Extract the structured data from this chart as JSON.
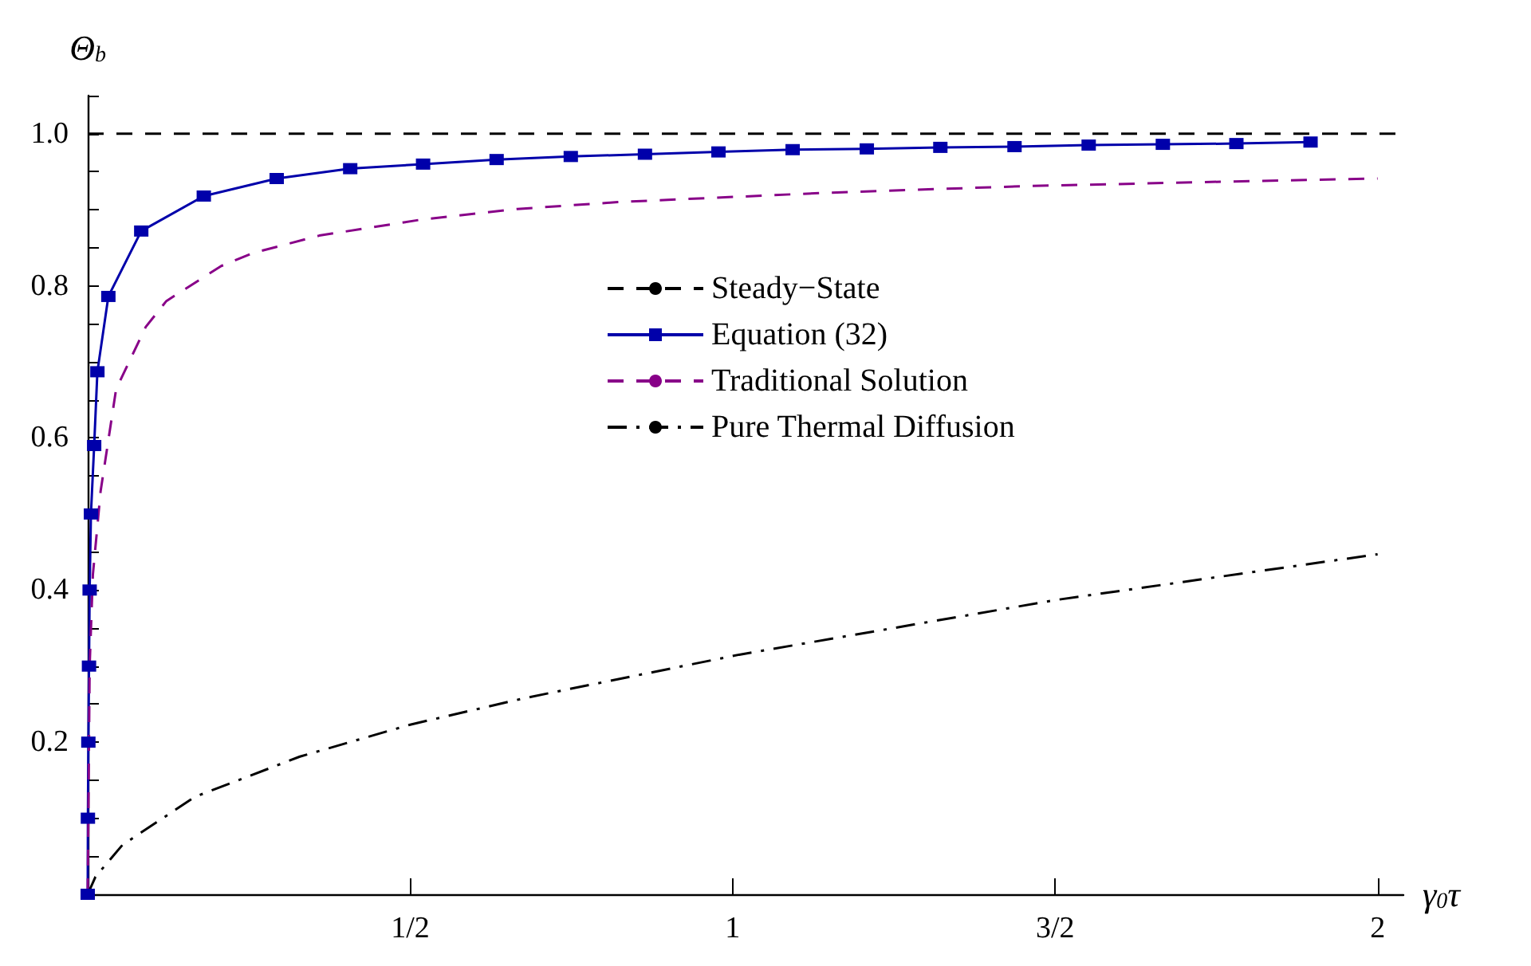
{
  "chart_data": {
    "type": "line",
    "xlabel": "γ$_{0}$τ",
    "ylabel": "Θ$_{b}$",
    "xlim": [
      0,
      2.04
    ],
    "ylim": [
      0,
      1.05
    ],
    "xticks": [
      {
        "value": 0.5,
        "label": "1/2"
      },
      1,
      {
        "value": 1.5,
        "label": "3/2"
      },
      2
    ],
    "yticks": [
      {
        "value": 0,
        "label": null
      },
      {
        "value": 0.05,
        "label": null
      },
      {
        "value": 0.1,
        "label": null
      },
      {
        "value": 0.15,
        "label": null
      },
      0.2,
      {
        "value": 0.25,
        "label": null
      },
      {
        "value": 0.3,
        "label": null
      },
      {
        "value": 0.35,
        "label": null
      },
      0.4,
      {
        "value": 0.45,
        "label": null
      },
      {
        "value": 0.5,
        "label": null
      },
      {
        "value": 0.55,
        "label": null
      },
      0.6,
      {
        "value": 0.65,
        "label": null
      },
      {
        "value": 0.7,
        "label": null
      },
      {
        "value": 0.75,
        "label": null
      },
      0.8,
      {
        "value": 0.85,
        "label": null
      },
      {
        "value": 0.9,
        "label": null
      },
      {
        "value": 0.95,
        "label": null
      },
      {
        "value": 1.0,
        "label": "1.0"
      },
      {
        "value": 1.05,
        "label": null
      }
    ],
    "grid": false,
    "legend": "top right",
    "marker": "none",
    "series": [
      {
        "name": "Steady−State",
        "color": "#000000",
        "line_style": "dashed",
        "x": [
          0,
          2.04
        ],
        "values": [
          1,
          1
        ]
      },
      {
        "name": "Equation (32)",
        "color": "#0000aa",
        "line_style": "solid",
        "marker": "square",
        "x": [
          0,
          0.0003,
          0.001,
          0.002,
          0.003,
          0.005,
          0.01,
          0.015,
          0.032,
          0.083,
          0.18,
          0.293,
          0.407,
          0.52,
          0.634,
          0.749,
          0.864,
          0.978,
          1.093,
          1.208,
          1.322,
          1.437,
          1.552,
          1.667,
          1.781,
          1.896
        ],
        "values": [
          0,
          0.1,
          0.2,
          0.3,
          0.4,
          0.5,
          0.59,
          0.687,
          0.786,
          0.872,
          0.918,
          0.941,
          0.954,
          0.96,
          0.966,
          0.97,
          0.973,
          0.976,
          0.979,
          0.98,
          0.982,
          0.983,
          0.985,
          0.986,
          0.987,
          0.989
        ]
      },
      {
        "name": "Traditional Solution",
        "color": "#880088",
        "line_style": "dashed",
        "x": [
          0,
          0.003,
          0.008,
          0.02,
          0.044,
          0.09,
          0.122,
          0.207,
          0.256,
          0.359,
          0.517,
          0.666,
          0.822,
          1.137,
          1.451,
          1.766,
          2.0
        ],
        "values": [
          0,
          0.3,
          0.42,
          0.53,
          0.664,
          0.746,
          0.78,
          0.826,
          0.843,
          0.866,
          0.887,
          0.901,
          0.91,
          0.922,
          0.931,
          0.937,
          0.941
        ]
      },
      {
        "name": "Pure Thermal Diffusion",
        "color": "#000000",
        "line_style": "dashdot",
        "x": [
          0,
          0.012,
          0.054,
          0.166,
          0.329,
          0.5,
          0.678,
          1.01,
          1.502,
          2.0
        ],
        "values": [
          0,
          0.023,
          0.065,
          0.128,
          0.181,
          0.223,
          0.258,
          0.315,
          0.387,
          0.447
        ]
      }
    ]
  }
}
